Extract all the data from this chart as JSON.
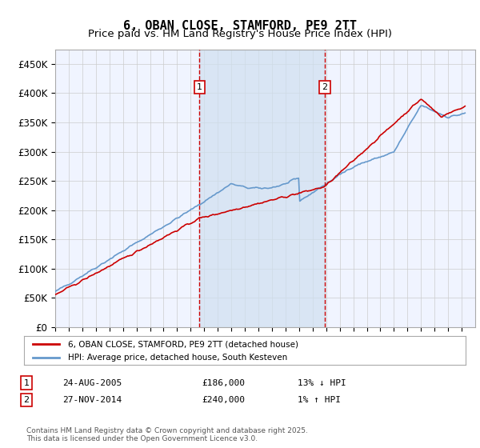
{
  "title": "6, OBAN CLOSE, STAMFORD, PE9 2TT",
  "subtitle": "Price paid vs. HM Land Registry's House Price Index (HPI)",
  "ylabel_ticks": [
    "£0",
    "£50K",
    "£100K",
    "£150K",
    "£200K",
    "£250K",
    "£300K",
    "£350K",
    "£400K",
    "£450K"
  ],
  "ytick_vals": [
    0,
    50000,
    100000,
    150000,
    200000,
    250000,
    300000,
    350000,
    400000,
    450000
  ],
  "ylim": [
    0,
    475000
  ],
  "xlim_start": 1995.0,
  "xlim_end": 2026.0,
  "background_color": "#ffffff",
  "plot_bg_color": "#f0f4ff",
  "grid_color": "#cccccc",
  "line1_color": "#cc0000",
  "line2_color": "#6699cc",
  "marker1_date": 2005.65,
  "marker2_date": 2014.9,
  "marker1_label": "1",
  "marker2_label": "2",
  "shade_color": "#d0e0f0",
  "legend_line1": "6, OBAN CLOSE, STAMFORD, PE9 2TT (detached house)",
  "legend_line2": "HPI: Average price, detached house, South Kesteven",
  "table_row1": [
    "1",
    "24-AUG-2005",
    "£186,000",
    "13% ↓ HPI"
  ],
  "table_row2": [
    "2",
    "27-NOV-2014",
    "£240,000",
    "1% ↑ HPI"
  ],
  "footer": "Contains HM Land Registry data © Crown copyright and database right 2025.\nThis data is licensed under the Open Government Licence v3.0.",
  "title_fontsize": 11,
  "subtitle_fontsize": 9.5,
  "tick_fontsize": 8.5
}
